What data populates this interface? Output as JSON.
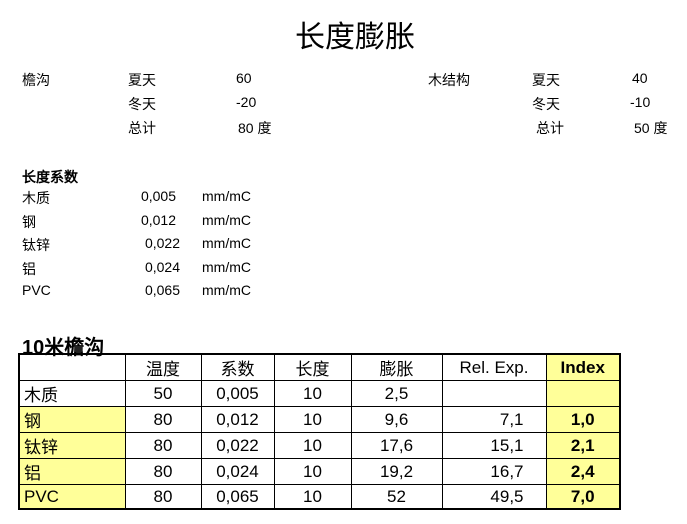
{
  "title": "长度膨胀",
  "gutter": {
    "label": "檐沟",
    "rows": [
      {
        "label": "夏天",
        "value": "60"
      },
      {
        "label": "冬天",
        "value": "-20"
      },
      {
        "label": "总计",
        "value": "80 度"
      }
    ]
  },
  "wood_structure": {
    "label": "木结构",
    "rows": [
      {
        "label": "夏天",
        "value": "40"
      },
      {
        "label": "冬天",
        "value": "-10"
      },
      {
        "label": "总计",
        "value": "50 度"
      }
    ]
  },
  "coefficients": {
    "heading": "长度系数",
    "unit": "mm/mC",
    "rows": [
      {
        "material": "木质",
        "value": "0,005"
      },
      {
        "material": "钢",
        "value": "0,012"
      },
      {
        "material": "钛锌",
        "value": "0,022"
      },
      {
        "material": "铝",
        "value": "0,024"
      },
      {
        "material": "PVC",
        "value": "0,065"
      }
    ]
  },
  "table": {
    "title": "10米檐沟",
    "headers": [
      "",
      "温度",
      "系数",
      "长度",
      "膨胀",
      "Rel. Exp.",
      "Index"
    ],
    "rows": [
      [
        "木质",
        "50",
        "0,005",
        "10",
        "2,5",
        "",
        ""
      ],
      [
        "钢",
        "80",
        "0,012",
        "10",
        "9,6",
        "7,1",
        "1,0"
      ],
      [
        "钛锌",
        "80",
        "0,022",
        "10",
        "17,6",
        "15,1",
        "2,1"
      ],
      [
        "铝",
        "80",
        "0,024",
        "10",
        "19,2",
        "16,7",
        "2,4"
      ],
      [
        "PVC",
        "80",
        "0,065",
        "10",
        "52",
        "49,5",
        "7,0"
      ]
    ],
    "highlight_color": "#ffff99"
  }
}
